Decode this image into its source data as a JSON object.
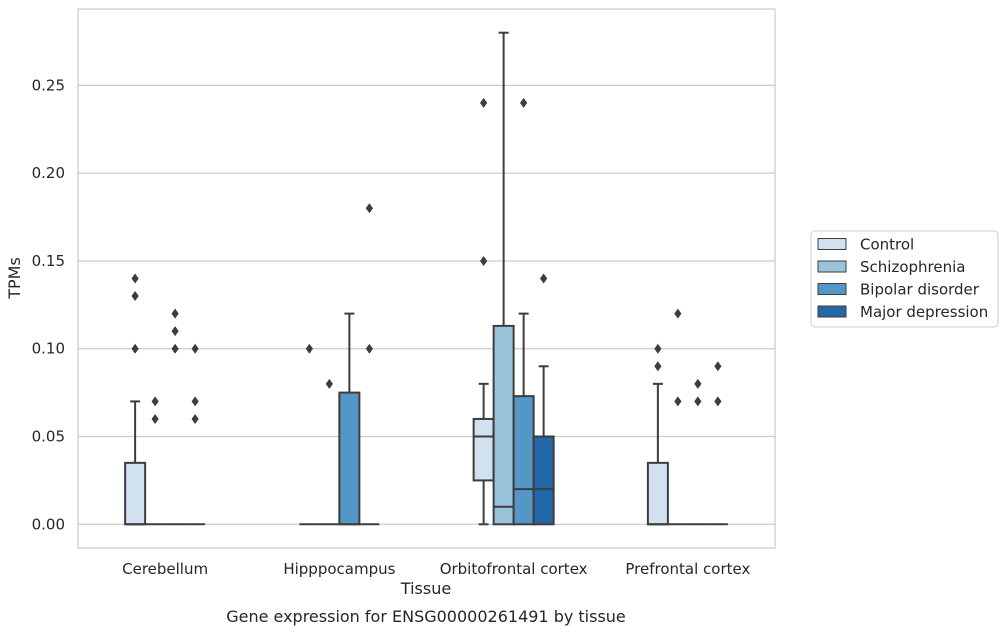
{
  "chart_data": {
    "type": "box",
    "caption": "Gene expression for ENSG00000261491 by tissue",
    "xlabel": "Tissue",
    "ylabel": "TPMs",
    "ylim": [
      -0.0135,
      0.2935
    ],
    "yticks": [
      0.0,
      0.05,
      0.1,
      0.15,
      0.2,
      0.25
    ],
    "ytick_labels": [
      "0.00",
      "0.05",
      "0.10",
      "0.15",
      "0.20",
      "0.25"
    ],
    "grid": "horizontal",
    "legend_position": "right",
    "categories": [
      "Cerebellum",
      "Hipppocampus",
      "Orbitofrontal cortex",
      "Prefrontal cortex"
    ],
    "series": [
      {
        "name": "Control",
        "color": "#d1e1f0",
        "boxes": [
          {
            "whislo": 0.0,
            "q1": 0.0,
            "med": 0.0,
            "q3": 0.035,
            "whishi": 0.07,
            "fliers": [
              0.1,
              0.13,
              0.14
            ]
          },
          {
            "whislo": 0.0,
            "q1": 0.0,
            "med": 0.0,
            "q3": 0.0,
            "whishi": 0.0,
            "fliers": [
              0.1
            ]
          },
          {
            "whislo": 0.0,
            "q1": 0.025,
            "med": 0.05,
            "q3": 0.06,
            "whishi": 0.08,
            "fliers": [
              0.15,
              0.24
            ]
          },
          {
            "whislo": 0.0,
            "q1": 0.0,
            "med": 0.0,
            "q3": 0.035,
            "whishi": 0.08,
            "fliers": [
              0.09,
              0.1
            ]
          }
        ]
      },
      {
        "name": "Schizophrenia",
        "color": "#9ac3dc",
        "boxes": [
          {
            "whislo": 0.0,
            "q1": 0.0,
            "med": 0.0,
            "q3": 0.0,
            "whishi": 0.0,
            "fliers": [
              0.06,
              0.07
            ]
          },
          {
            "whislo": 0.0,
            "q1": 0.0,
            "med": 0.0,
            "q3": 0.0,
            "whishi": 0.0,
            "fliers": [
              0.08
            ]
          },
          {
            "whislo": 0.0,
            "q1": 0.0,
            "med": 0.01,
            "q3": 0.113,
            "whishi": 0.28,
            "fliers": []
          },
          {
            "whislo": 0.0,
            "q1": 0.0,
            "med": 0.0,
            "q3": 0.0,
            "whishi": 0.0,
            "fliers": [
              0.07,
              0.12
            ]
          }
        ]
      },
      {
        "name": "Bipolar disorder",
        "color": "#5497c6",
        "boxes": [
          {
            "whislo": 0.0,
            "q1": 0.0,
            "med": 0.0,
            "q3": 0.0,
            "whishi": 0.0,
            "fliers": [
              0.1,
              0.11,
              0.12
            ]
          },
          {
            "whislo": 0.0,
            "q1": 0.0,
            "med": 0.0,
            "q3": 0.075,
            "whishi": 0.12,
            "fliers": []
          },
          {
            "whislo": 0.0,
            "q1": 0.0,
            "med": 0.02,
            "q3": 0.073,
            "whishi": 0.12,
            "fliers": [
              0.24
            ]
          },
          {
            "whislo": 0.0,
            "q1": 0.0,
            "med": 0.0,
            "q3": 0.0,
            "whishi": 0.0,
            "fliers": [
              0.07,
              0.08
            ]
          }
        ]
      },
      {
        "name": "Major depression",
        "color": "#2369aa",
        "boxes": [
          {
            "whislo": 0.0,
            "q1": 0.0,
            "med": 0.0,
            "q3": 0.0,
            "whishi": 0.0,
            "fliers": [
              0.06,
              0.07,
              0.1
            ]
          },
          {
            "whislo": 0.0,
            "q1": 0.0,
            "med": 0.0,
            "q3": 0.0,
            "whishi": 0.0,
            "fliers": [
              0.1,
              0.18
            ]
          },
          {
            "whislo": 0.0,
            "q1": 0.0,
            "med": 0.02,
            "q3": 0.05,
            "whishi": 0.09,
            "fliers": [
              0.14
            ]
          },
          {
            "whislo": 0.0,
            "q1": 0.0,
            "med": 0.0,
            "q3": 0.0,
            "whishi": 0.0,
            "fliers": [
              0.07,
              0.09
            ]
          }
        ]
      }
    ]
  }
}
